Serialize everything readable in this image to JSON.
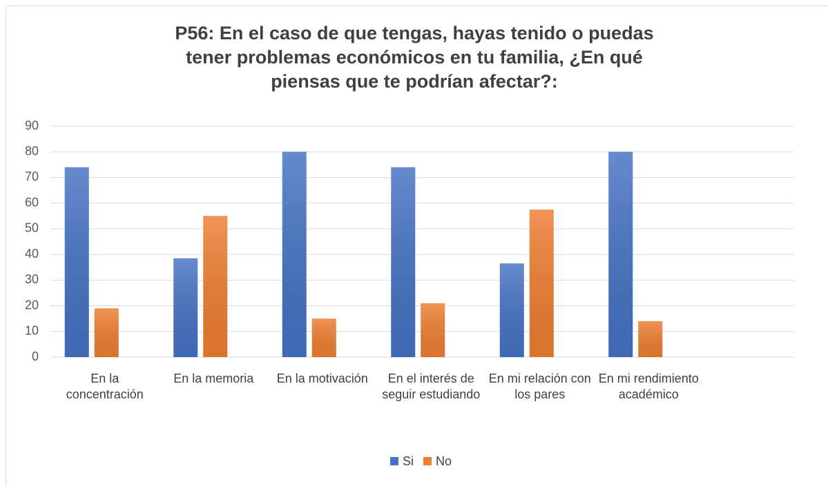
{
  "chart_data": {
    "type": "bar",
    "title": [
      "P56: En el caso de que tengas, hayas tenido o puedas",
      "tener problemas económicos en tu familia, ¿En qué",
      "piensas que te podrían afectar?:"
    ],
    "categories": [
      "En la concentración",
      "En la memoria",
      "En la motivación",
      "En el interés de seguir estudiando",
      "En mi relación con los pares",
      "En mi rendimiento académico",
      null
    ],
    "series": [
      {
        "name": "Si",
        "color": "#4472c4",
        "values": [
          74,
          38.5,
          80,
          74,
          36.5,
          80,
          null
        ]
      },
      {
        "name": "No",
        "color": "#ed7d31",
        "values": [
          19,
          55,
          15,
          21,
          57.5,
          14,
          null
        ]
      }
    ],
    "ylim": [
      0,
      90
    ],
    "yticks": [
      0,
      10,
      20,
      30,
      40,
      50,
      60,
      70,
      80,
      90
    ],
    "grid": true,
    "legend": "bottom"
  }
}
